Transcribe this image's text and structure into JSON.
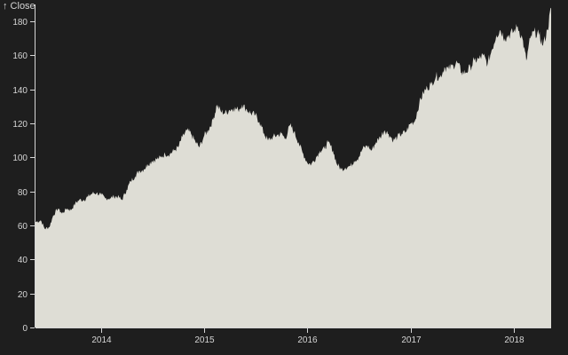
{
  "chart_data": {
    "type": "area",
    "title": "",
    "ylabel": "↑ Close",
    "xlabel": "",
    "ylim": [
      0,
      190
    ],
    "xlim": [
      "2013-05-13",
      "2018-05-14"
    ],
    "grid": false,
    "colors": {
      "background": "#1e1e1e",
      "area": "#deddd5",
      "text": "#d6d6d6"
    },
    "y_ticks": [
      0,
      20,
      40,
      60,
      80,
      100,
      120,
      140,
      160,
      180
    ],
    "y_tick_labels": [
      "0",
      "20",
      "40",
      "60",
      "80",
      "100",
      "120",
      "140",
      "160",
      "180"
    ],
    "x_ticks": [
      "2014-01-01",
      "2015-01-01",
      "2016-01-01",
      "2017-01-01",
      "2018-01-01"
    ],
    "x_tick_labels": [
      "2014",
      "2015",
      "2016",
      "2017",
      "2018"
    ],
    "series": [
      {
        "x": [
          "2013-05-13",
          "2013-06-01",
          "2013-06-15",
          "2013-07-01",
          "2013-07-15",
          "2013-08-01",
          "2013-08-15",
          "2013-09-01",
          "2013-09-15",
          "2013-10-01",
          "2013-10-15",
          "2013-11-01",
          "2013-11-15",
          "2013-12-01",
          "2013-12-15",
          "2014-01-01",
          "2014-01-15",
          "2014-02-01",
          "2014-02-15",
          "2014-03-01",
          "2014-03-15",
          "2014-04-01",
          "2014-04-15",
          "2014-05-01",
          "2014-05-15",
          "2014-06-01",
          "2014-06-15",
          "2014-07-01",
          "2014-07-15",
          "2014-08-01",
          "2014-08-15",
          "2014-09-01",
          "2014-09-15",
          "2014-10-01",
          "2014-10-15",
          "2014-11-01",
          "2014-11-15",
          "2014-12-01",
          "2014-12-15",
          "2015-01-01",
          "2015-01-15",
          "2015-02-01",
          "2015-02-15",
          "2015-03-01",
          "2015-03-15",
          "2015-04-01",
          "2015-04-15",
          "2015-05-01",
          "2015-05-15",
          "2015-06-01",
          "2015-06-15",
          "2015-07-01",
          "2015-07-15",
          "2015-08-01",
          "2015-08-15",
          "2015-09-01",
          "2015-09-15",
          "2015-10-01",
          "2015-10-15",
          "2015-11-01",
          "2015-11-15",
          "2015-12-01",
          "2015-12-15",
          "2016-01-01",
          "2016-01-15",
          "2016-02-01",
          "2016-02-15",
          "2016-03-01",
          "2016-03-15",
          "2016-04-01",
          "2016-04-15",
          "2016-05-01",
          "2016-05-15",
          "2016-06-01",
          "2016-06-15",
          "2016-07-01",
          "2016-07-15",
          "2016-08-01",
          "2016-08-15",
          "2016-09-01",
          "2016-09-15",
          "2016-10-01",
          "2016-10-15",
          "2016-11-01",
          "2016-11-15",
          "2016-12-01",
          "2016-12-15",
          "2017-01-01",
          "2017-01-15",
          "2017-02-01",
          "2017-02-15",
          "2017-03-01",
          "2017-03-15",
          "2017-04-01",
          "2017-04-15",
          "2017-05-01",
          "2017-05-15",
          "2017-06-01",
          "2017-06-15",
          "2017-07-01",
          "2017-07-15",
          "2017-08-01",
          "2017-08-15",
          "2017-09-01",
          "2017-09-15",
          "2017-10-01",
          "2017-10-15",
          "2017-11-01",
          "2017-11-15",
          "2017-12-01",
          "2017-12-15",
          "2018-01-01",
          "2018-01-15",
          "2018-02-01",
          "2018-02-15",
          "2018-03-01",
          "2018-03-15",
          "2018-04-01",
          "2018-04-15",
          "2018-05-01",
          "2018-05-14"
        ],
        "values": [
          62,
          63,
          58,
          59,
          66,
          70,
          67,
          70,
          69,
          73,
          75,
          75,
          77,
          79,
          79,
          78,
          76,
          76,
          77,
          77,
          75,
          81,
          86,
          89,
          92,
          93,
          96,
          98,
          99,
          100,
          102,
          102,
          104,
          106,
          112,
          116,
          114,
          109,
          106,
          113,
          116,
          122,
          131,
          127,
          126,
          128,
          129,
          128,
          131,
          128,
          126,
          125,
          121,
          114,
          110,
          112,
          113,
          114,
          111,
          119,
          115,
          109,
          103,
          97,
          96,
          100,
          104,
          105,
          109,
          104,
          96,
          93,
          94,
          95,
          98,
          100,
          105,
          107,
          104,
          109,
          112,
          116,
          114,
          110,
          112,
          114,
          115,
          120,
          121,
          132,
          138,
          141,
          143,
          148,
          147,
          153,
          152,
          154,
          156,
          150,
          150,
          153,
          157,
          158,
          160,
          155,
          163,
          172,
          175,
          170,
          172,
          174,
          177,
          170,
          157,
          170,
          174,
          172,
          166,
          175,
          188
        ]
      }
    ]
  }
}
